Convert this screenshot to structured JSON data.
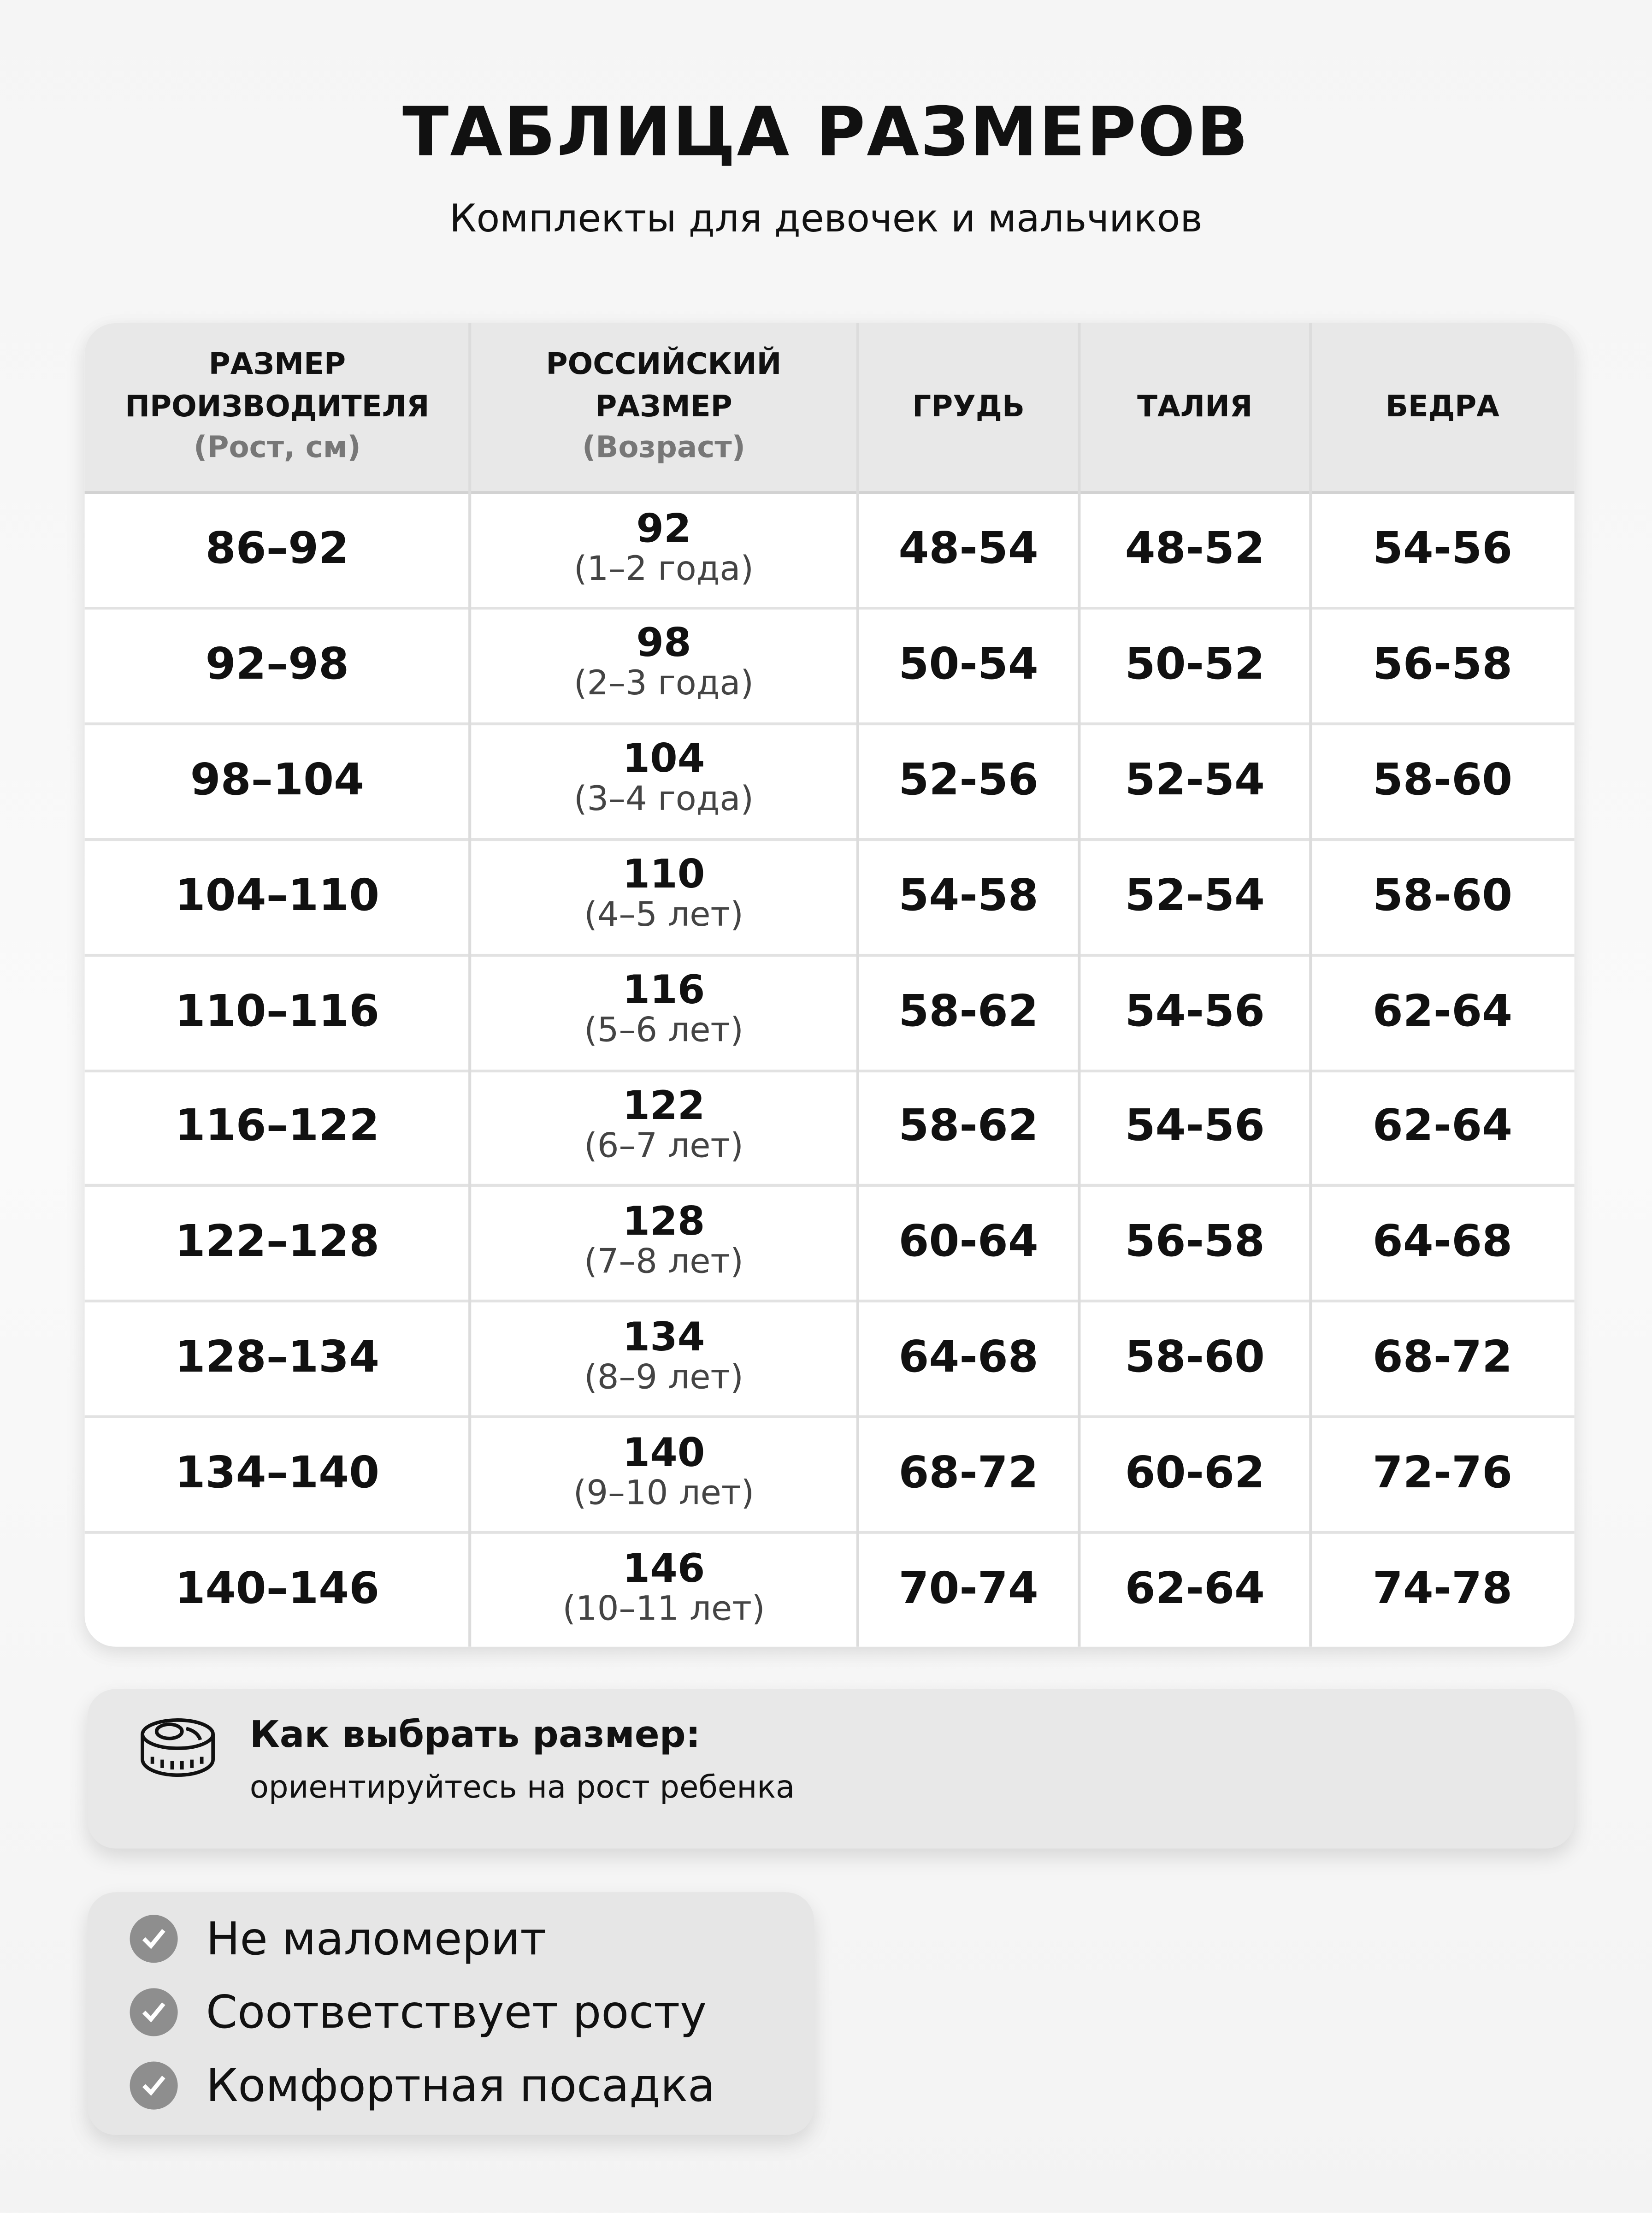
{
  "title": "ТАБЛИЦА РАЗМЕРОВ",
  "subtitle": "Комплекты для девочек и мальчиков",
  "table": {
    "headers": [
      {
        "label": "РАЗМЕР ПРОИЗВОДИТЕЛЯ",
        "sub": "(Рост, см)"
      },
      {
        "label": "РОССИЙСКИЙ РАЗМЕР",
        "sub": "(Возраст)"
      },
      {
        "label": "ГРУДЬ"
      },
      {
        "label": "ТАЛИЯ"
      },
      {
        "label": "БЕДРА"
      }
    ],
    "rows": [
      {
        "height": "86–92",
        "ru": "92",
        "age": "(1–2 года)",
        "chest": "48-54",
        "waist": "48-52",
        "hips": "54-56"
      },
      {
        "height": "92–98",
        "ru": "98",
        "age": "(2–3 года)",
        "chest": "50-54",
        "waist": "50-52",
        "hips": "56-58"
      },
      {
        "height": "98–104",
        "ru": "104",
        "age": "(3–4 года)",
        "chest": "52-56",
        "waist": "52-54",
        "hips": "58-60"
      },
      {
        "height": "104–110",
        "ru": "110",
        "age": "(4–5 лет)",
        "chest": "54-58",
        "waist": "52-54",
        "hips": "58-60"
      },
      {
        "height": "110–116",
        "ru": "116",
        "age": "(5–6 лет)",
        "chest": "58-62",
        "waist": "54-56",
        "hips": "62-64"
      },
      {
        "height": "116–122",
        "ru": "122",
        "age": "(6–7 лет)",
        "chest": "58-62",
        "waist": "54-56",
        "hips": "62-64"
      },
      {
        "height": "122–128",
        "ru": "128",
        "age": "(7–8 лет)",
        "chest": "60-64",
        "waist": "56-58",
        "hips": "64-68"
      },
      {
        "height": "128–134",
        "ru": "134",
        "age": "(8–9 лет)",
        "chest": "64-68",
        "waist": "58-60",
        "hips": "68-72"
      },
      {
        "height": "134–140",
        "ru": "140",
        "age": "(9–10 лет)",
        "chest": "68-72",
        "waist": "60-62",
        "hips": "72-76"
      },
      {
        "height": "140–146",
        "ru": "146",
        "age": "(10–11 лет)",
        "chest": "70-74",
        "waist": "62-64",
        "hips": "74-78"
      }
    ]
  },
  "info": {
    "icon": "measuring-tape-icon",
    "title": "Как выбрать размер:",
    "text": "ориентируйтесь на рост ребенка"
  },
  "features": {
    "icon": "check-circle-icon",
    "items": [
      "Не маломерит",
      "Соответствует росту",
      "Комфортная посадка"
    ]
  }
}
